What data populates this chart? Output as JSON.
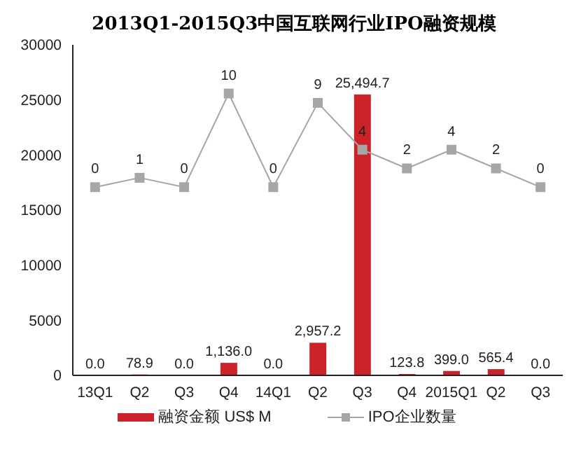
{
  "chart_data": {
    "type": "bar",
    "title": "2013Q1-2015Q3中国互联网行业IPO融资规模",
    "categories": [
      "13Q1",
      "Q2",
      "Q3",
      "Q4",
      "14Q1",
      "Q2",
      "Q3",
      "Q4",
      "2015Q1",
      "Q2",
      "Q3"
    ],
    "series": [
      {
        "name": "融资金额 US$ M",
        "color": "#cc2229",
        "values": [
          0.0,
          78.9,
          0.0,
          1136.0,
          0.0,
          2957.2,
          25494.7,
          123.8,
          399.0,
          565.4,
          0.0
        ],
        "value_labels": [
          "0.0",
          "78.9",
          "0.0",
          "1,136.0",
          "0.0",
          "2,957.2",
          "25,494.7",
          "123.8",
          "399.0",
          "565.4",
          "0.0"
        ]
      },
      {
        "name": "IPO企业数量",
        "type": "line",
        "axis": "y2",
        "color": "#a6a6a8",
        "marker": "square",
        "values": [
          0,
          1,
          0,
          10,
          0,
          9,
          4,
          2,
          4,
          2,
          0
        ]
      }
    ],
    "ylim": [
      0,
      30000
    ],
    "yticks": [
      0,
      5000,
      10000,
      15000,
      20000,
      25000,
      30000
    ],
    "y2lim": [
      -20.1,
      15.2
    ],
    "data_labels": true,
    "grid": false,
    "legend": "bottom"
  }
}
